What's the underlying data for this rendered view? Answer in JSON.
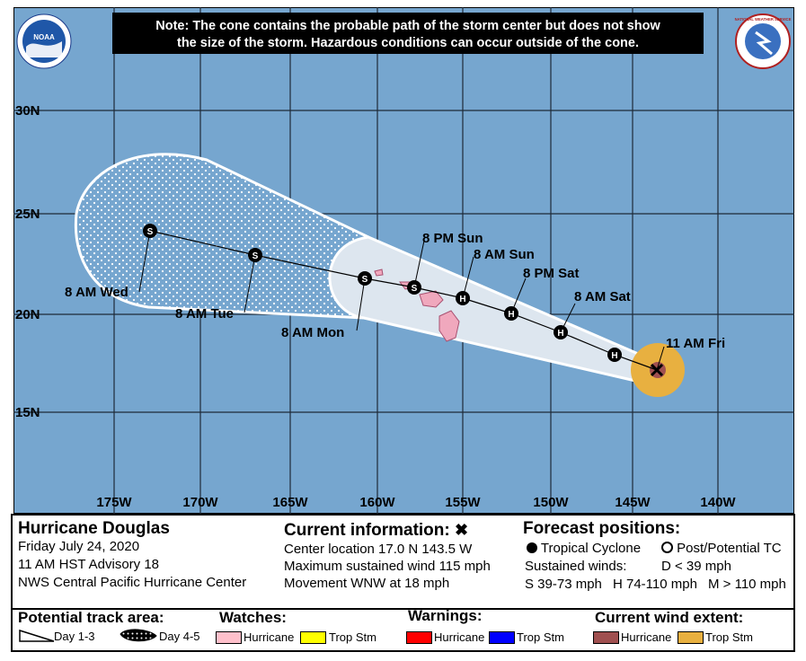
{
  "note": {
    "line1": "Note: The cone contains the probable path of the storm center but does not show",
    "line2": "the size of the storm. Hazardous conditions can occur outside of the cone."
  },
  "logos": {
    "left": "NOAA",
    "right": "NATIONAL WEATHER SERVICE"
  },
  "axes": {
    "lat_labels": [
      "30N",
      "25N",
      "20N",
      "15N"
    ],
    "lon_labels": [
      "175W",
      "170W",
      "165W",
      "160W",
      "155W",
      "150W",
      "145W",
      "140W"
    ]
  },
  "track": {
    "current_marker": "x",
    "current_label": "11 AM Fri",
    "points": [
      {
        "label": "",
        "symbol": "H"
      },
      {
        "label": "8 AM Sat",
        "symbol": "H"
      },
      {
        "label": "8 PM Sat",
        "symbol": "H"
      },
      {
        "label": "8 AM Sun",
        "symbol": "H"
      },
      {
        "label": "8 PM Sun",
        "symbol": "S"
      },
      {
        "label": "8 AM Mon",
        "symbol": "S"
      },
      {
        "label": "8 AM Tue",
        "symbol": "S"
      },
      {
        "label": "8 AM Wed",
        "symbol": "S"
      }
    ]
  },
  "storm": {
    "title": "Hurricane Douglas",
    "date": "Friday July 24, 2020",
    "advisory": "11 AM HST Advisory 18",
    "center": "NWS Central Pacific Hurricane Center"
  },
  "current_info": {
    "heading": "Current information:",
    "heading_icon": "x-icon",
    "location": "Center location 17.0 N 143.5 W",
    "wind": "Maximum sustained wind 115 mph",
    "movement": "Movement WNW at 18 mph"
  },
  "forecast": {
    "heading": "Forecast positions:",
    "tc_label": "Tropical Cyclone",
    "post_label": "Post/Potential TC",
    "sustained": "Sustained winds:",
    "d_label": "D < 39 mph",
    "s_label": "S 39-73 mph",
    "h_label": "H 74-110 mph",
    "m_label": "M > 110 mph"
  },
  "legend": {
    "track_area": "Potential track area:",
    "day13": "Day 1-3",
    "day45": "Day 4-5",
    "watches": "Watches:",
    "warnings": "Warnings:",
    "wind_extent": "Current wind extent:",
    "hurricane": "Hurricane",
    "trop_stm": "Trop Stm",
    "colors": {
      "watch_hurricane": "#ffc0cb",
      "watch_trop": "#ffff00",
      "warn_hurricane": "#ff0000",
      "warn_trop": "#0000ff",
      "wind_hurricane": "#a05050",
      "wind_trop": "#e8b040"
    }
  },
  "colors": {
    "ocean": "#76a6cf",
    "cone": "#dde6ef",
    "land": "#f0a8bd"
  }
}
